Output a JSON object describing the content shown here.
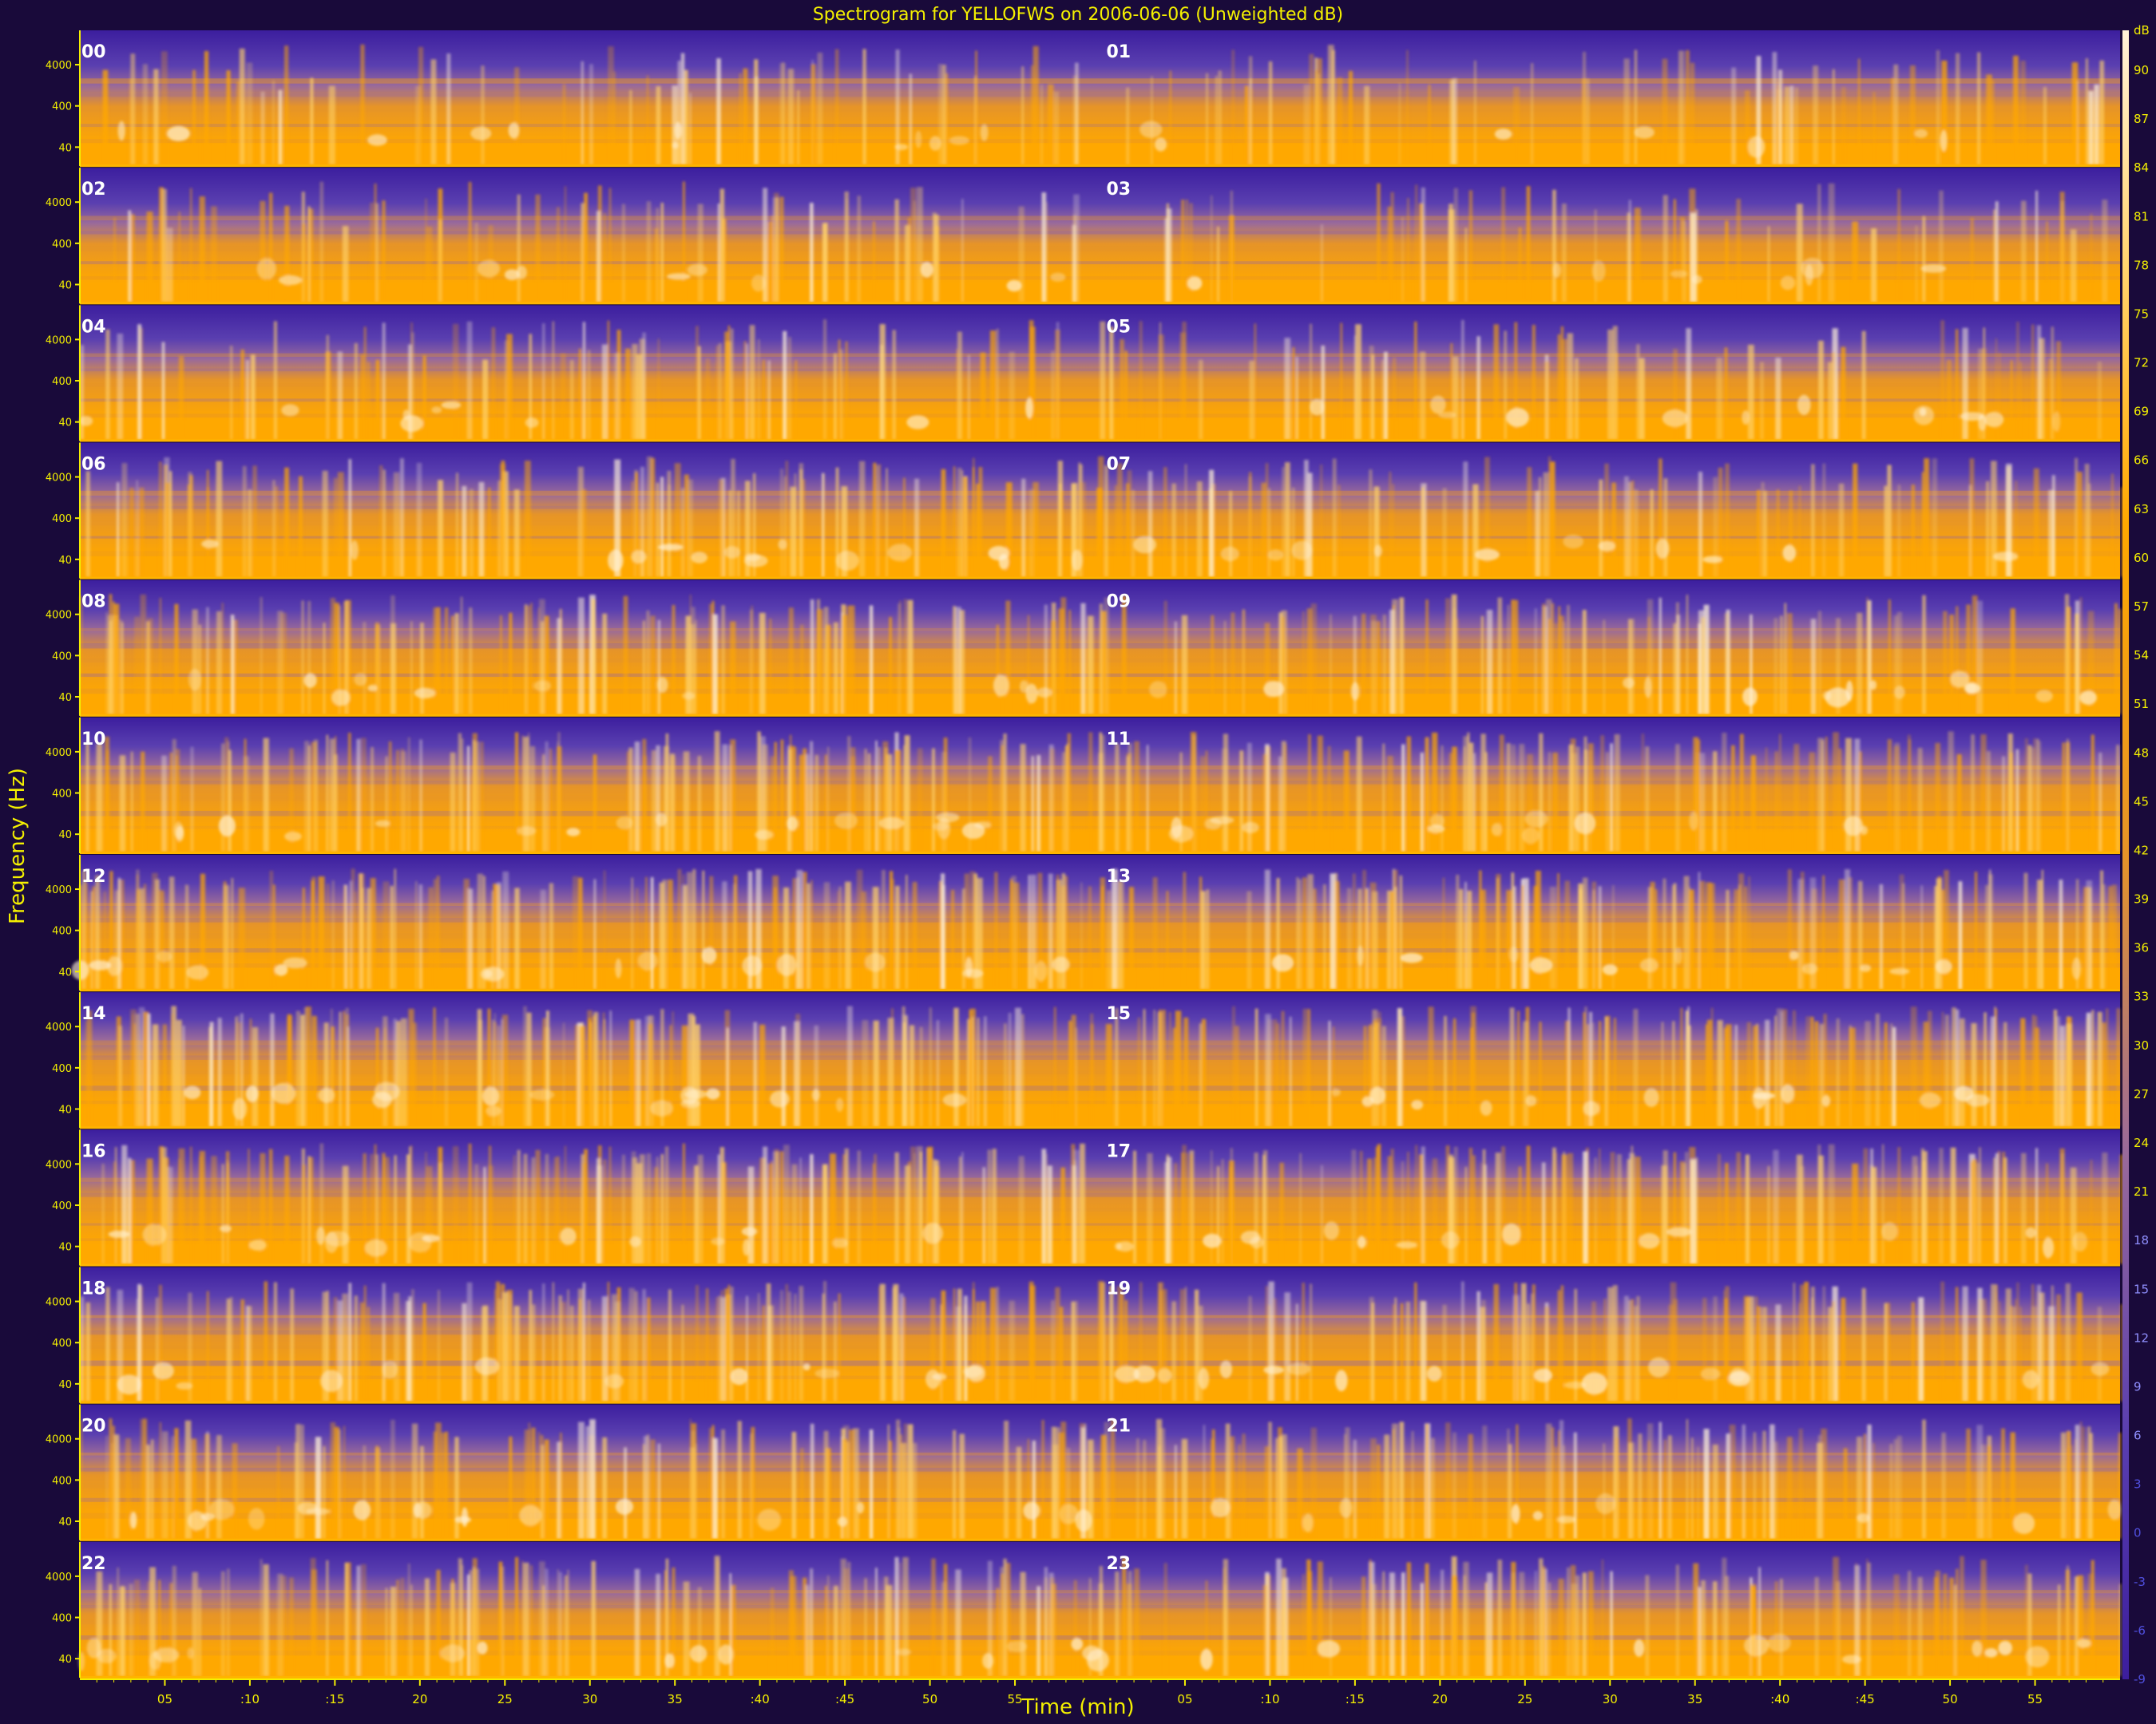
{
  "chart_data": {
    "type": "heatmap",
    "title": "Spectrogram for YELLOFWS on 2006-06-06 (Unweighted dB)",
    "xlabel": "Time (min)",
    "ylabel": "Frequency (Hz)",
    "frequency_ticks": [
      "40",
      "400",
      "4000"
    ],
    "time_ticks": [
      "05",
      ":10",
      ":15",
      "20",
      "25",
      "30",
      "35",
      ":40",
      ":45",
      "50",
      "55"
    ],
    "colorbar_ticks": [
      90,
      87,
      84,
      81,
      78,
      75,
      72,
      69,
      66,
      63,
      60,
      57,
      54,
      51,
      48,
      45,
      42,
      39,
      36,
      33,
      30,
      27,
      24,
      21,
      18,
      15,
      12,
      9,
      6,
      3,
      0,
      -3,
      -6,
      -9
    ],
    "colorbar_unit": "dB",
    "colormap": [
      "#3c1e9e",
      "#5a3fb0",
      "#9a6a9a",
      "#e69428",
      "#ffa800",
      "#ffd26a",
      "#fff2d8"
    ],
    "hours": [
      "00",
      "01",
      "02",
      "03",
      "04",
      "05",
      "06",
      "07",
      "08",
      "09",
      "10",
      "11",
      "12",
      "13",
      "14",
      "15",
      "16",
      "17",
      "18",
      "19",
      "20",
      "21",
      "22",
      "23"
    ],
    "panel_rows": 12,
    "panels_per_row": 2,
    "activity_level": [
      0.32,
      0.3,
      0.34,
      0.32,
      0.4,
      0.42,
      0.55,
      0.58,
      0.62,
      0.64,
      0.72,
      0.74,
      0.78,
      0.78,
      0.8,
      0.8,
      0.76,
      0.76,
      0.72,
      0.72,
      0.66,
      0.64,
      0.6,
      0.6
    ]
  }
}
